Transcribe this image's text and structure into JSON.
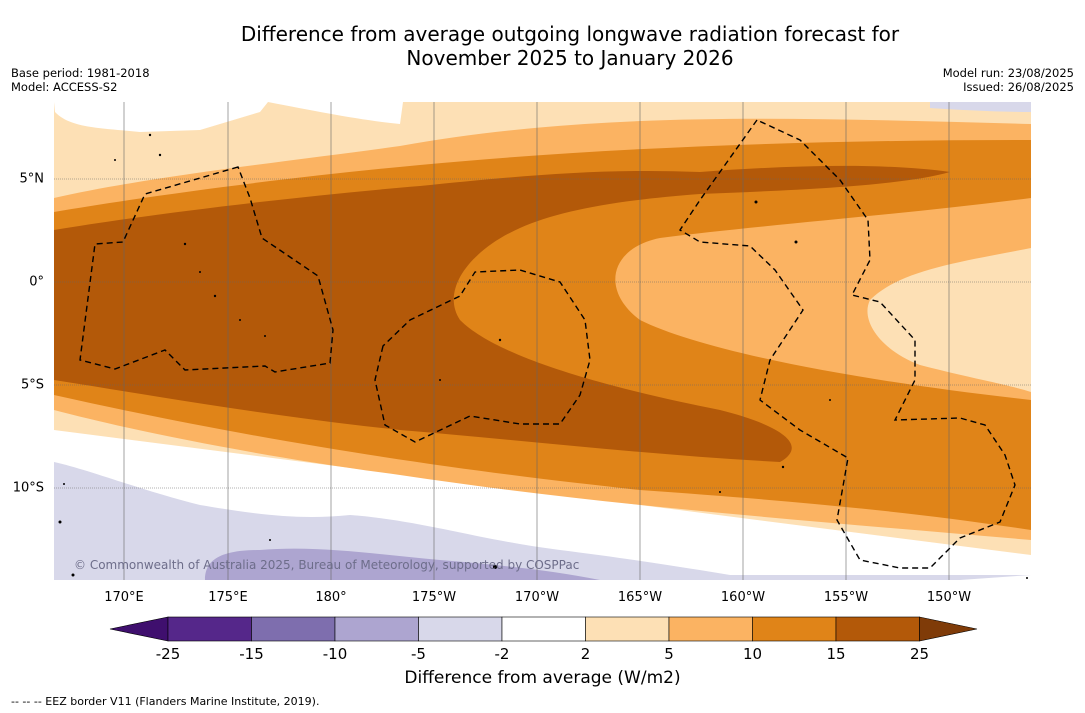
{
  "title_line1": "Difference from average outgoing longwave radiation forecast for",
  "title_line2": "November 2025 to January 2026",
  "base_period": "Base period: 1981-2018",
  "model": "Model: ACCESS-S2",
  "model_run": "Model run: 23/08/2025",
  "issued": "Issued: 26/08/2025",
  "attribution": "© Commonwealth of Australia 2025, Bureau of Meteorology, supported by COSPPac",
  "lon_labels": [
    "170°E",
    "175°E",
    "180°",
    "175°W",
    "170°W",
    "165°W",
    "160°W",
    "155°W",
    "150°W"
  ],
  "lat_labels": [
    "5°N",
    "0°",
    "5°S",
    "10°S"
  ],
  "colorbar": {
    "ticks": [
      "-25",
      "-15",
      "-10",
      "-5",
      "-2",
      "2",
      "5",
      "10",
      "15",
      "25"
    ],
    "colors": [
      "#3f0f6e",
      "#55278a",
      "#7e6eae",
      "#ada5d0",
      "#d8d8ea",
      "#ffffff",
      "#fde0b5",
      "#fbb362",
      "#e08418",
      "#b35909",
      "#7f3b08"
    ],
    "label": "Difference from average (W/m2)"
  },
  "footnote": "-- -- -- EEZ border V11 (Flanders Marine Institute, 2019)."
}
